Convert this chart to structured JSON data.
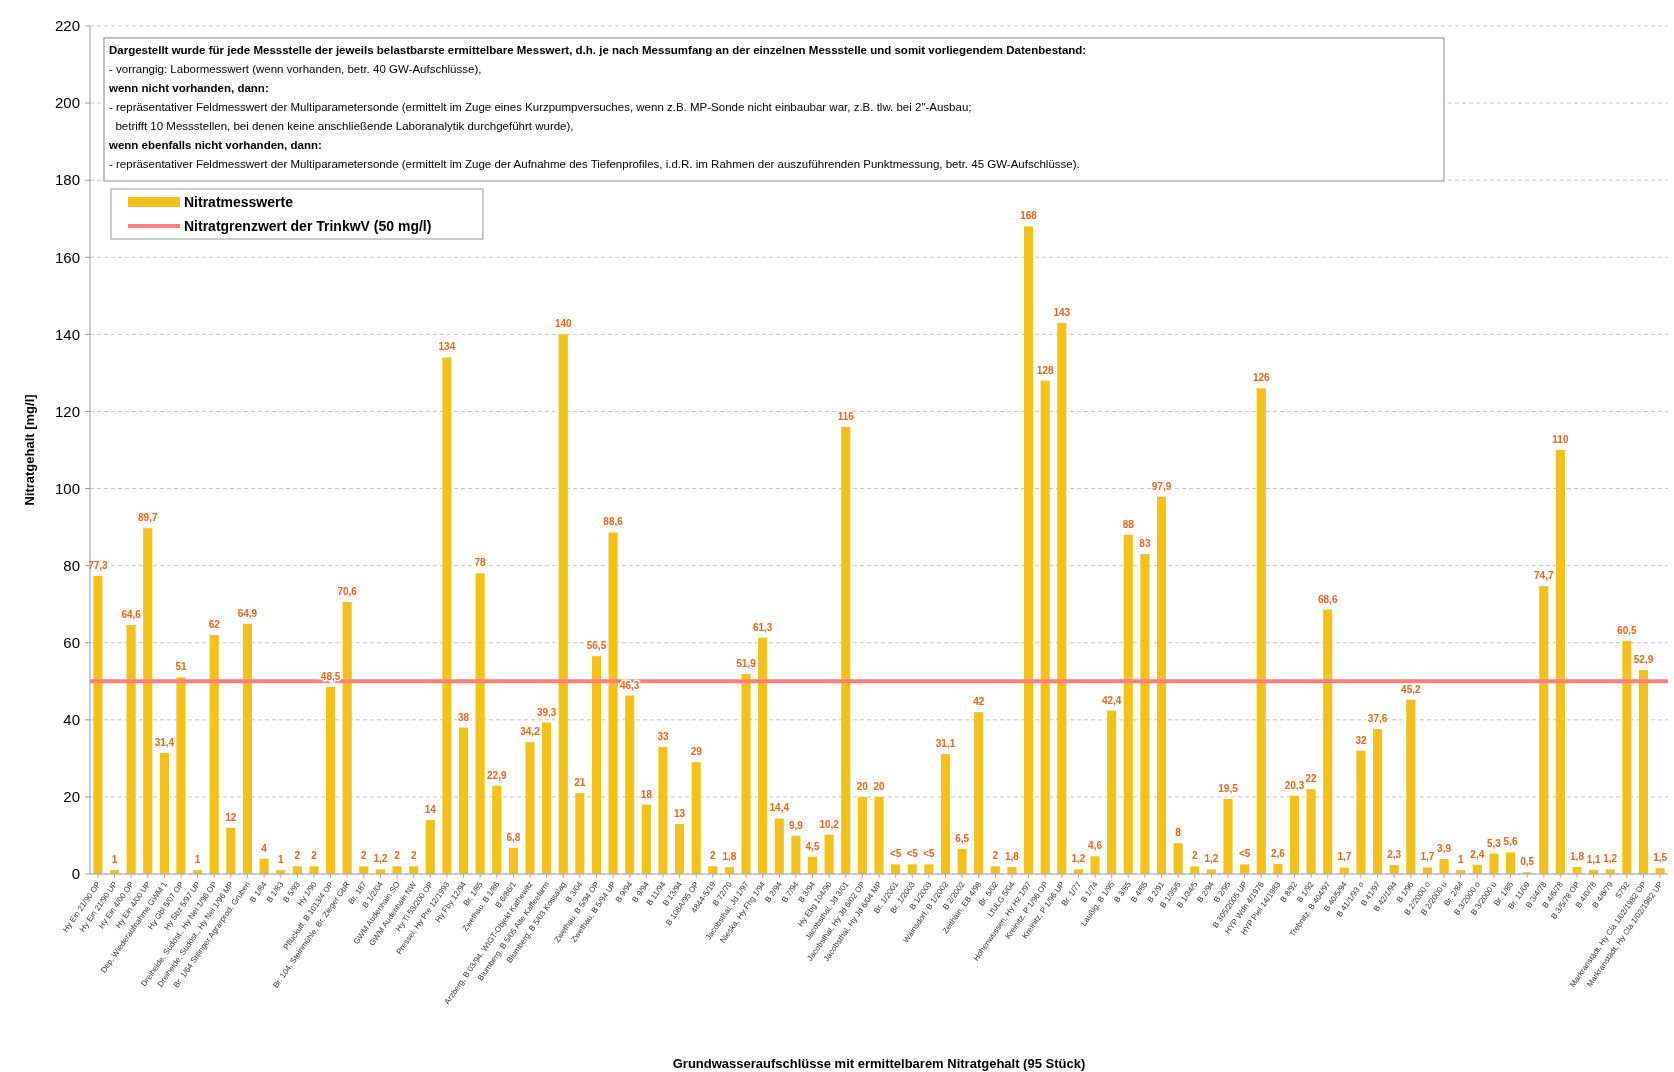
{
  "chart_data": {
    "type": "bar",
    "xlabel": "Grundwasseraufschlüsse mit ermittelbarem Nitratgehalt (95 Stück)",
    "ylabel": "Nitratgehalt [mg/l]",
    "categories": [
      "Hy Ein 21/90 OP",
      "Hy Ein 21/90 UP",
      "Hy Ein 4/00 OP",
      "Hy Ein 4/00 UP",
      "Dep. Wiederaufnahme GWM 1",
      "Hy Gbl 5/07 OP",
      "Hy Sbz 5/97 UP",
      "Dreiheide, Südöst., Hy Nei 1/96 OP",
      "Dreiheide, Südöst., Hy Nei 1/96 MP",
      "Br. 1/64 Stilinger Agrarprod. Gruben",
      "B 1/84",
      "B 1/83",
      "B 5/93",
      "Hy 1/90",
      "Pflückuff, B 1013/4 OP",
      "Br. 104, Steinmühle, Br. Zieger GbR",
      "Br. 187",
      "B 1/2/04",
      "GWM Audenhain SO",
      "GWM Audenhain NW",
      "Hy Ti 53/200 OP",
      "Pressel, Hy Pre 12/1993",
      "Hy Fby 12/94",
      "Br. 1/85",
      "Zwethau, B 1/86",
      "B 6/86/1",
      "Arzberg, B 03/94, WIGT-Objekt Kathewitz",
      "Blumberg, B 5/05 Alte Kaffeefarm",
      "Blumberg, B 5/03 Kossalag",
      "B 3/04",
      "Zwethau, B 5/94 OP",
      "Zwethau, B 5/94 UP",
      "B 9/94",
      "B 9/94",
      "B 11/94",
      "B 13/94",
      "B 108A/95 OP",
      "4844-5/19",
      "B 72/70",
      "Jacobsthal, Jd 1/97",
      "Nieska, Hy Fhg 1/94",
      "B 2/94",
      "B 7/94",
      "B 3/94",
      "Hy Ebg 104/90",
      "Jacobsthal, Jd 3/01",
      "Jacobsthal, Hy Jd 6/02 OP",
      "Jacobsthal, Hy Jd 6/04 MP",
      "Br. 1/2001",
      "Br. 1/2003",
      "B 1/2003",
      "Wainsdorf, B 1/2002",
      "B 2/2002",
      "Zeithain, EB 4/98",
      "Br. 5/02",
      "LfULG 5/04",
      "Hohenwussen, Hy Hz 1/97",
      "Kreinitz, P 1/96 OP",
      "Kreinitz, P 1/96 UP",
      "Br. 1/77",
      "B 1/74",
      "Laußig, B 1/95",
      "B 3/85",
      "B 4/85",
      "B 2/91",
      "B 1/35/5",
      "B 1/34/5",
      "B 2/94",
      "B 2/95",
      "B 305/2005 UP",
      "HYP Wdn 4/1976",
      "HYP Piel 14/1983",
      "B 8/92",
      "B 1/92",
      "Trebnitz, B 404/97",
      "B 40/5/94",
      "B 41/1/93 o",
      "B 41/97",
      "B 42/1/94",
      "B 1/96",
      "B 2/2000 o",
      "B 2/2000 u",
      "Br. 2/84",
      "B 3/2000 o",
      "B 3/2000 u",
      "Br. 1/85",
      "Br. 11/09",
      "B 3/4/78",
      "B 4/6/78",
      "B 3/5/78 OP",
      "B 4/0/78",
      "B 4/6/79",
      "S792",
      "Markranstädt, Hy Cla 1/02/1982 OP",
      "Markranstädt, Hy Cla 1/02/1982 UP"
    ],
    "series": [
      {
        "name": "Nitratmesswerte",
        "color": "#f2c21b",
        "values": [
          77.3,
          1,
          64.6,
          89.7,
          31.4,
          51,
          1,
          62,
          12,
          64.9,
          4,
          1,
          2,
          2,
          48.5,
          70.6,
          2,
          1.2,
          2,
          2,
          14,
          134,
          38,
          78,
          22.9,
          6.8,
          34.2,
          39.3,
          140,
          21,
          56.5,
          88.6,
          46.3,
          18,
          33,
          13,
          29,
          2,
          1.8,
          51.9,
          61.3,
          14.4,
          9.9,
          4.5,
          10.2,
          116,
          20,
          20,
          2.5,
          2.5,
          2.5,
          31.1,
          6.5,
          42,
          2,
          1.8,
          168,
          128,
          143,
          1.2,
          4.6,
          42.4,
          88,
          83,
          97.9,
          8,
          2,
          1.2,
          19.5,
          2.5,
          126,
          2.6,
          20.3,
          22,
          68.6,
          1.7,
          32,
          37.6,
          2.3,
          45.2,
          1.7,
          3.9,
          1,
          2.4,
          5.3,
          5.6,
          0.5,
          74.7,
          110,
          1.8,
          1.1,
          1.2,
          60.5,
          52.9,
          1.5
        ],
        "value_labels": [
          "77,3",
          "1",
          "64,6",
          "89,7",
          "31,4",
          "51",
          "1",
          "62",
          "12",
          "64,9",
          "4",
          "1",
          "2",
          "2",
          "48,5",
          "70,6",
          "2",
          "1,2",
          "2",
          "2",
          "14",
          "134",
          "38",
          "78",
          "22,9",
          "6,8",
          "34,2",
          "39,3",
          "140",
          "21",
          "56,5",
          "88,6",
          "46,3",
          "18",
          "33",
          "13",
          "29",
          "2",
          "1,8",
          "51,9",
          "61,3",
          "14,4",
          "9,9",
          "4,5",
          "10,2",
          "116",
          "20",
          "20",
          "<5",
          "<5",
          "<5",
          "31,1",
          "6,5",
          "42",
          "2",
          "1,8",
          "168",
          "128",
          "143",
          "1,2",
          "4,6",
          "42,4",
          "88",
          "83",
          "97,9",
          "8",
          "2",
          "1,2",
          "19,5",
          "<5",
          "126",
          "2,6",
          "20,3",
          "22",
          "68,6",
          "1,7",
          "32",
          "37,6",
          "2,3",
          "45,2",
          "1,7",
          "3,9",
          "1",
          "2,4",
          "5,3",
          "5,6",
          "0,5",
          "74,7",
          "110",
          "1,8",
          "1,1",
          "1,2",
          "60,5",
          "52,9",
          "1,5"
        ]
      }
    ],
    "ylim": [
      0,
      220
    ],
    "yticks": [
      0,
      20,
      40,
      60,
      80,
      100,
      120,
      140,
      160,
      180,
      200,
      220
    ],
    "grid": "y",
    "legend": "top left",
    "ref_lines": [
      {
        "axis": "y",
        "value": 50,
        "label": "Nitratgrenzwert der TrinkwV (50 mg/l)",
        "color": "#ff7f7f"
      }
    ],
    "annotations": [
      "Dargestellt wurde für jede Messstelle der jeweils belastbarste ermittelbare Messwert, d.h. je nach Messumfang an der einzelnen Messstelle und somit vorliegendem Datenbestand:",
      "- vorrangig: Labormesswert (wenn vorhanden, betr. 40 GW-Aufschlüsse),",
      "wenn nicht vorhanden, dann:",
      "- repräsentativer Feldmesswert der Multiparametersonde (ermittelt im Zuge eines Kurzpumpversuches, wenn z.B. MP-Sonde nicht einbaubar war, z.B. tlw. bei 2\"-Ausbau;",
      "  betrifft 10 Messstellen, bei denen keine anschließende Laboranalytik durchgeführt wurde),",
      "wenn ebenfalls nicht vorhanden, dann:",
      "- repräsentativer Feldmesswert der Multiparametersonde (ermittelt im Zuge der Aufnahme des Tiefenprofiles, i.d.R. im Rahmen der auszuführenden Punktmessung, betr. 45 GW-Aufschlüsse)."
    ]
  }
}
